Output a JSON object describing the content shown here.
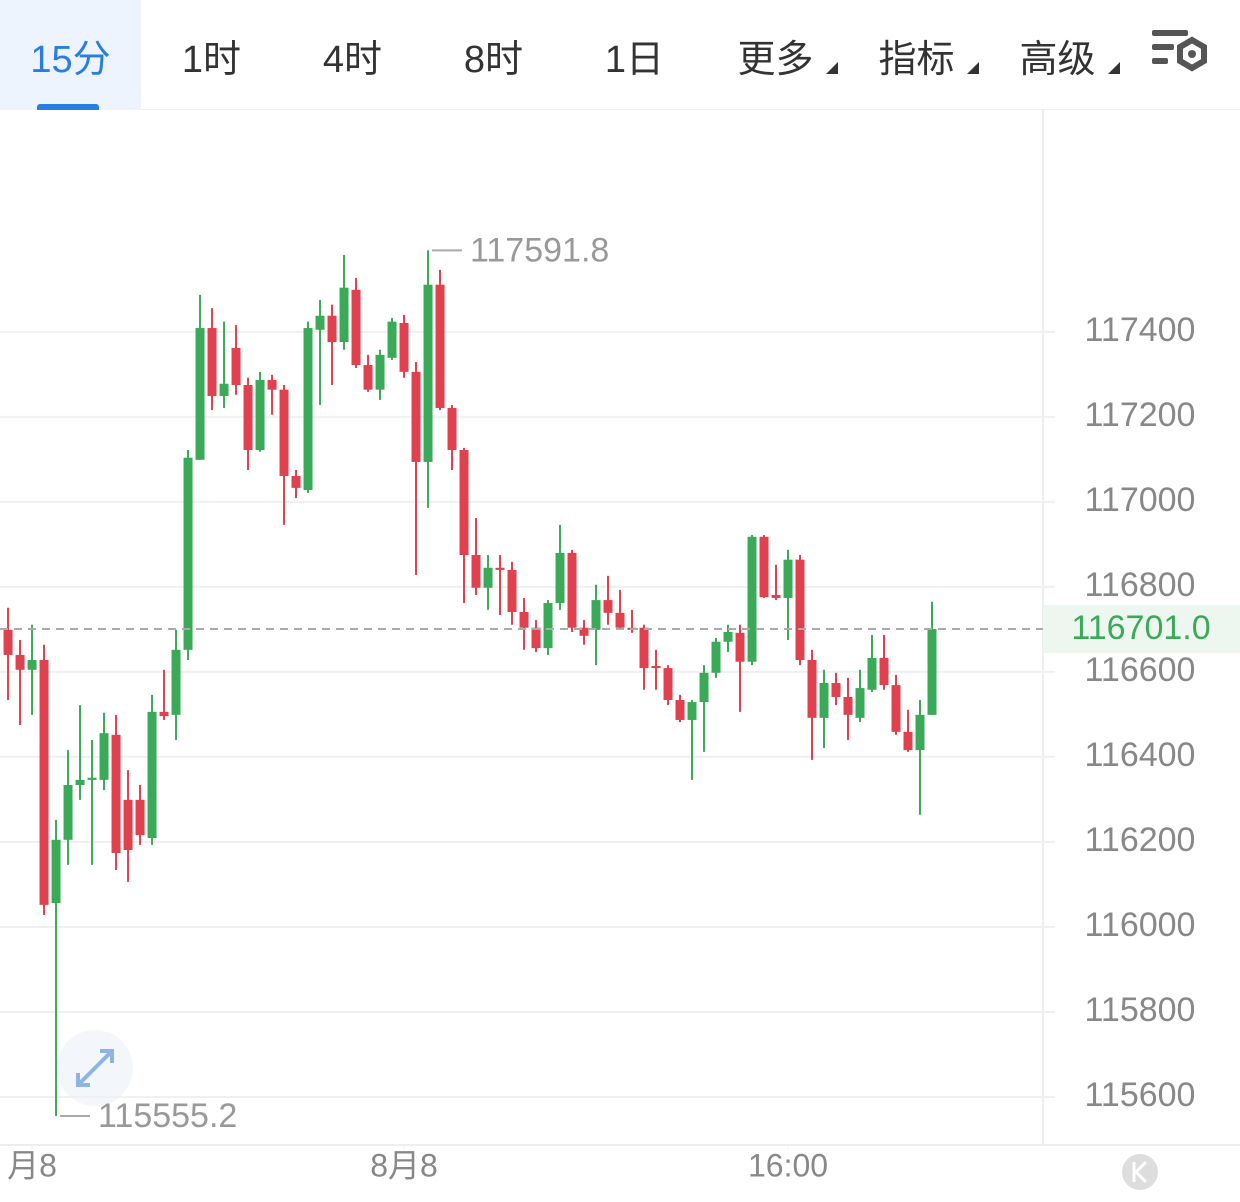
{
  "toolbar": {
    "tabs": [
      "15分",
      "1时",
      "4时",
      "8时",
      "1日",
      "更多",
      "指标",
      "高级"
    ],
    "active": 0,
    "menus": [
      5,
      6,
      7
    ]
  },
  "chart_data": {
    "type": "candlestick",
    "open": [
      116699,
      116640,
      116605,
      116628,
      116056,
      116205,
      116334,
      116346,
      116346,
      116452,
      116299,
      116299,
      116209,
      116506,
      116499,
      116652,
      117099,
      117409,
      117249,
      117362,
      117275,
      117122,
      117287,
      117264,
      117061,
      117028,
      117405,
      117438,
      117376,
      117499,
      117322,
      117264,
      117339,
      117421,
      117306,
      117094,
      117511,
      117221,
      117122,
      116875,
      116798,
      116845,
      116840,
      116741,
      116704,
      116656,
      116762,
      116880,
      116704,
      116699,
      116769,
      116739,
      116704,
      116704,
      116614,
      116609,
      116534,
      116487,
      116529,
      116598,
      116671,
      116692,
      116624,
      116918,
      116781,
      116774,
      116864,
      116628,
      116492,
      116574,
      116541,
      116492,
      116558,
      116633,
      116569,
      116459,
      116416,
      116499
    ],
    "high": [
      116751,
      116675,
      116711,
      116664,
      116252,
      116416,
      116522,
      116440,
      116504,
      116499,
      116369,
      116334,
      116546,
      116605,
      116699,
      117122,
      117487,
      117456,
      117424,
      117416,
      117292,
      117306,
      117299,
      117275,
      117075,
      117424,
      117475,
      117464,
      117581,
      117527,
      117346,
      117358,
      117433,
      117440,
      117329,
      117591.8,
      117546,
      117228,
      117127,
      116962,
      116875,
      116875,
      116859,
      116774,
      116722,
      116769,
      116946,
      116887,
      116722,
      116805,
      116826,
      116793,
      116746,
      116711,
      116652,
      116616,
      116546,
      116534,
      116616,
      116680,
      116711,
      116711,
      116922,
      116922,
      116852,
      116887,
      116875,
      116652,
      116605,
      116598,
      116586,
      116605,
      116687,
      116687,
      116593,
      116511,
      116534,
      116765
    ],
    "low": [
      116534,
      116475,
      116499,
      116028,
      115555.2,
      116146,
      116299,
      116146,
      116322,
      116134,
      116106,
      116193,
      116193,
      116487,
      116440,
      116628,
      117099,
      117216,
      117221,
      117252,
      117075,
      117118,
      117205,
      116946,
      117009,
      117021,
      117228,
      117275,
      117358,
      117315,
      117259,
      117240,
      117334,
      117292,
      116828,
      116986,
      117216,
      117075,
      116762,
      116781,
      116746,
      116734,
      116711,
      116652,
      116647,
      116640,
      116746,
      116694,
      116664,
      116616,
      116711,
      116699,
      116692,
      116558,
      116558,
      116522,
      116482,
      116346,
      116412,
      116586,
      116647,
      116506,
      116616,
      116774,
      116769,
      116675,
      116616,
      116393,
      116421,
      116522,
      116440,
      116482,
      116553,
      116558,
      116452,
      116412,
      116264,
      116499
    ],
    "close": [
      116640,
      116605,
      116628,
      116052,
      116205,
      116334,
      116346,
      116351,
      116456,
      116174,
      116181,
      116216,
      116506,
      116496,
      116652,
      117104,
      117409,
      117249,
      117278,
      117275,
      117122,
      117287,
      117264,
      117061,
      117033,
      117409,
      117438,
      117376,
      117504,
      117322,
      117264,
      117346,
      117424,
      117306,
      117094,
      117511,
      117221,
      117122,
      116875,
      116798,
      116845,
      116840,
      116741,
      116704,
      116656,
      116762,
      116880,
      116704,
      116685,
      116769,
      116739,
      116704,
      116699,
      116609,
      116609,
      116534,
      116487,
      116529,
      116598,
      116671,
      116694,
      116624,
      116918,
      116776,
      116774,
      116864,
      116628,
      116492,
      116574,
      116541,
      116499,
      116562,
      116633,
      116569,
      116459,
      116416,
      116499,
      116701.0
    ],
    "up_color": "#3aaa59",
    "down_color": "#e0414f",
    "last_price_label": "116701.0",
    "xlim": [
      -0.67,
      86.25
    ],
    "xticks": [
      {
        "value": 2,
        "label": "月8"
      },
      {
        "value": 33,
        "label": "8月8"
      },
      {
        "value": 65,
        "label": "16:00"
      }
    ],
    "ylim": [
      115487,
      117922
    ],
    "yticks": [
      115600,
      115800,
      116000,
      116200,
      116400,
      116600,
      116800,
      117000,
      117200,
      117400
    ],
    "grid": true
  }
}
